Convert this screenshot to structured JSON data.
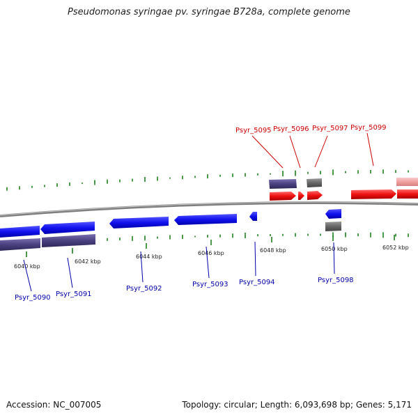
{
  "title": "Pseudomonas syringae pv. syringae B728a, complete genome",
  "footer": {
    "accession": "Accession: NC_007005",
    "summary": "Topology: circular; Length: 6,093,698 bp; Genes: 5,171"
  },
  "colors": {
    "forward_gene": "#ee1111",
    "reverse_gene": "#1111ee",
    "forward_label": "#cc0000",
    "reverse_label": "#0000aa",
    "cds_track": "#4a4080",
    "other_track": "#666666",
    "backbone": "#808080",
    "gc_ticks": "#117711",
    "forward_faded": "#f0a0a0"
  },
  "scale_labels": [
    "6040 kbp",
    "6042 kbp",
    "6044 kbp",
    "6046 kbp",
    "6048 kbp",
    "6050 kbp",
    "6052 kbp"
  ],
  "forward_labels": [
    "Psyr_5095",
    "Psyr_5096",
    "Psyr_5097",
    "Psyr_5099"
  ],
  "reverse_labels": [
    "Psyr_5090",
    "Psyr_5091",
    "Psyr_5092",
    "Psyr_5093",
    "Psyr_5094",
    "Psyr_5098"
  ]
}
